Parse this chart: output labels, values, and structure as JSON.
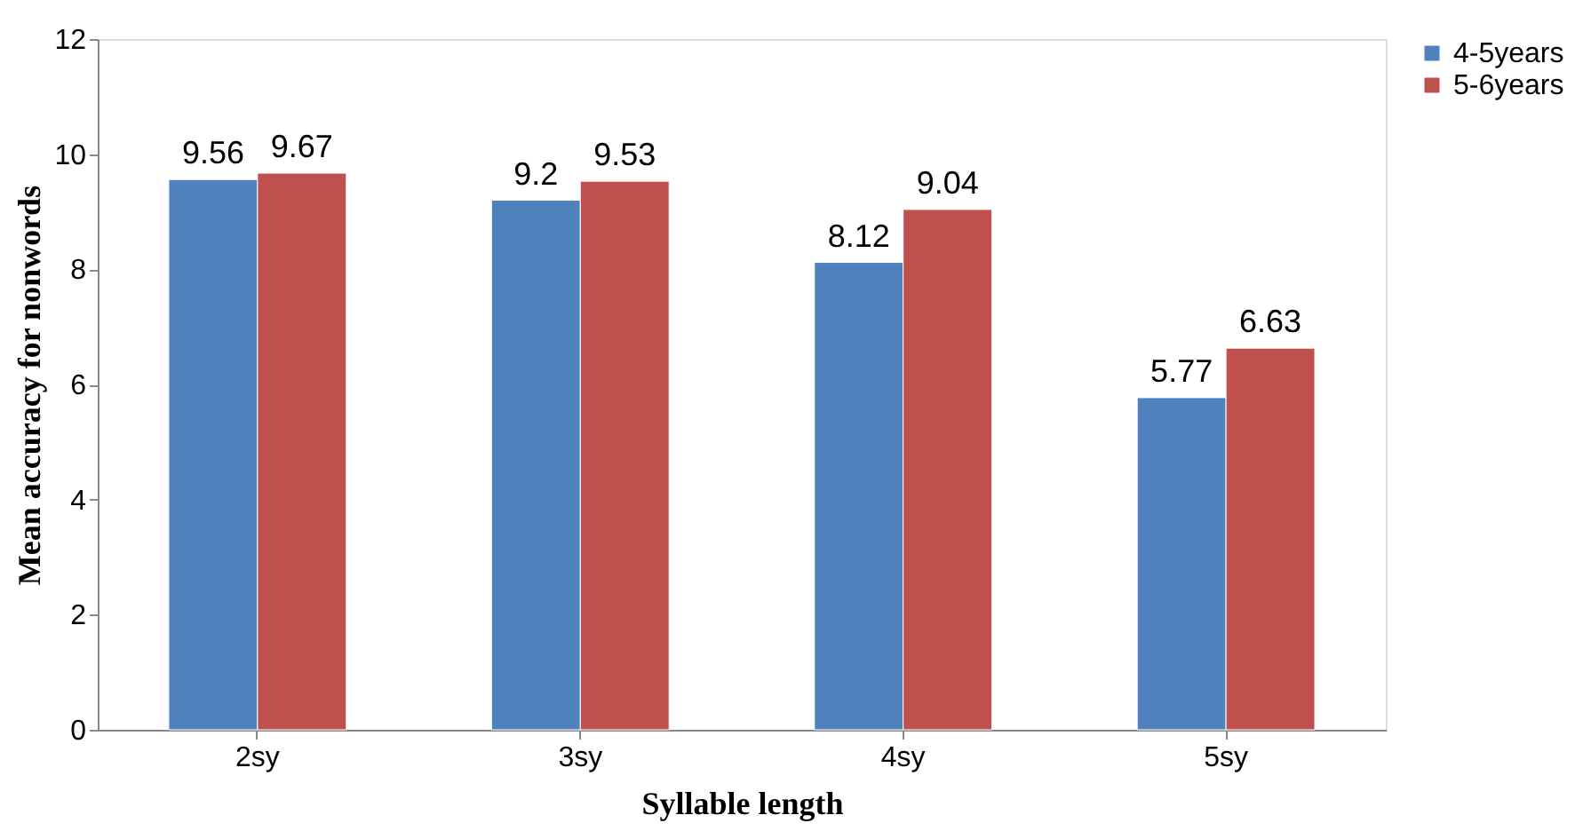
{
  "chart_data": {
    "type": "bar",
    "xlabel": "Syllable length",
    "ylabel": "Mean accuracy for  nonwords",
    "categories": [
      "2sy",
      "3sy",
      "4sy",
      "5sy"
    ],
    "series": [
      {
        "name": "4-5years",
        "color": "#4f81bd",
        "values": [
          9.56,
          9.2,
          8.12,
          5.77
        ]
      },
      {
        "name": "5-6years",
        "color": "#c0504d",
        "values": [
          9.67,
          9.53,
          9.04,
          6.63
        ]
      }
    ],
    "ylim": [
      0,
      12
    ],
    "yticks": [
      0,
      2,
      4,
      6,
      8,
      10,
      12
    ],
    "grid": false,
    "legend": "right",
    "data_labels": true
  }
}
